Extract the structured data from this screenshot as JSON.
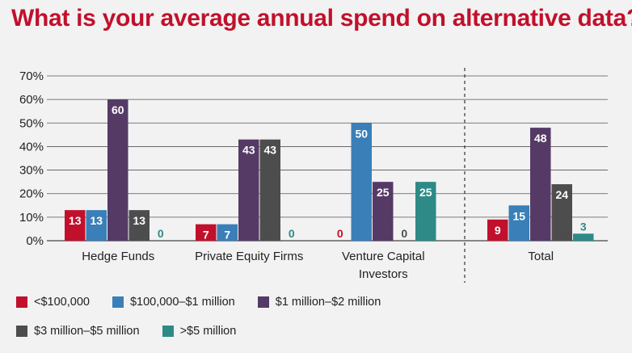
{
  "title": "What is your average annual spend on alternative data?",
  "chart_data": {
    "type": "bar",
    "categories": [
      [
        "Hedge Funds"
      ],
      [
        "Private Equity Firms"
      ],
      [
        "Venture Capital",
        "Investors"
      ],
      [
        "Total"
      ]
    ],
    "series": [
      {
        "name": "<$100,000",
        "color": "#c1102c",
        "values": [
          13,
          7,
          0,
          9
        ]
      },
      {
        "name": "$100,000–$1 million",
        "color": "#3a7fb8",
        "values": [
          13,
          7,
          50,
          15
        ]
      },
      {
        "name": "$1 million–$2 million",
        "color": "#553a66",
        "values": [
          60,
          43,
          25,
          48
        ]
      },
      {
        "name": "$3 million–$5 million",
        "color": "#4d4d4d",
        "values": [
          13,
          43,
          0,
          24
        ]
      },
      {
        "name": ">$5 million",
        "color": "#2e8a86",
        "values": [
          0,
          0,
          25,
          3
        ]
      }
    ],
    "ylim": [
      0,
      70
    ],
    "yticks": [
      "0%",
      "10%",
      "20%",
      "30%",
      "40%",
      "50%",
      "60%",
      "70%"
    ],
    "grid": true,
    "legend_position": "bottom",
    "separator_before": "Total"
  }
}
